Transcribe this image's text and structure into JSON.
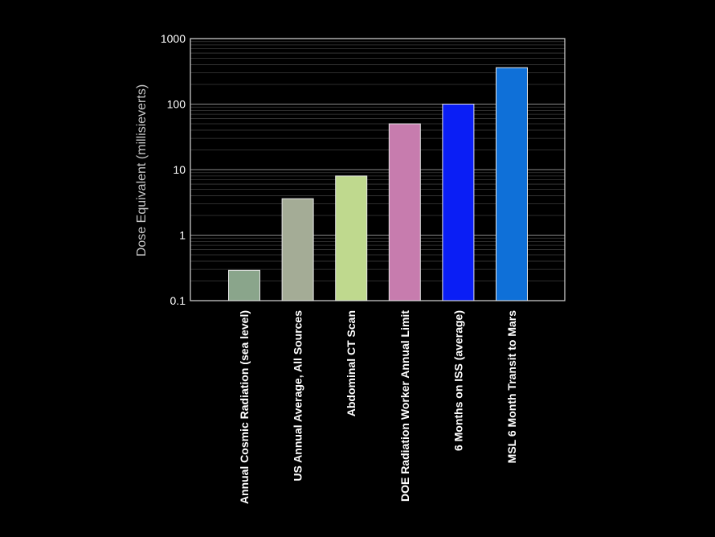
{
  "chart_data": {
    "type": "bar",
    "title": "",
    "xlabel": "",
    "ylabel": "Dose Equivalent (millisieverts)",
    "yscale": "log",
    "ylim": [
      0.1,
      1000
    ],
    "yticks": [
      "0.1",
      "1",
      "10",
      "100",
      "1000"
    ],
    "grid": true,
    "categories": [
      "Annual Cosmic Radiation (sea level)",
      "US Annual Average, All Sources",
      "Abdominal CT Scan",
      "DOE Radiation Worker Annual Limit",
      "6 Months on ISS (average)",
      "MSL  6 Month Transit to Mars"
    ],
    "values": [
      0.29,
      3.6,
      8,
      50,
      100,
      360
    ],
    "colors": [
      "#8aa58b",
      "#a4ac96",
      "#bfd98e",
      "#c77cae",
      "#0a1ef5",
      "#0f70d8"
    ]
  }
}
